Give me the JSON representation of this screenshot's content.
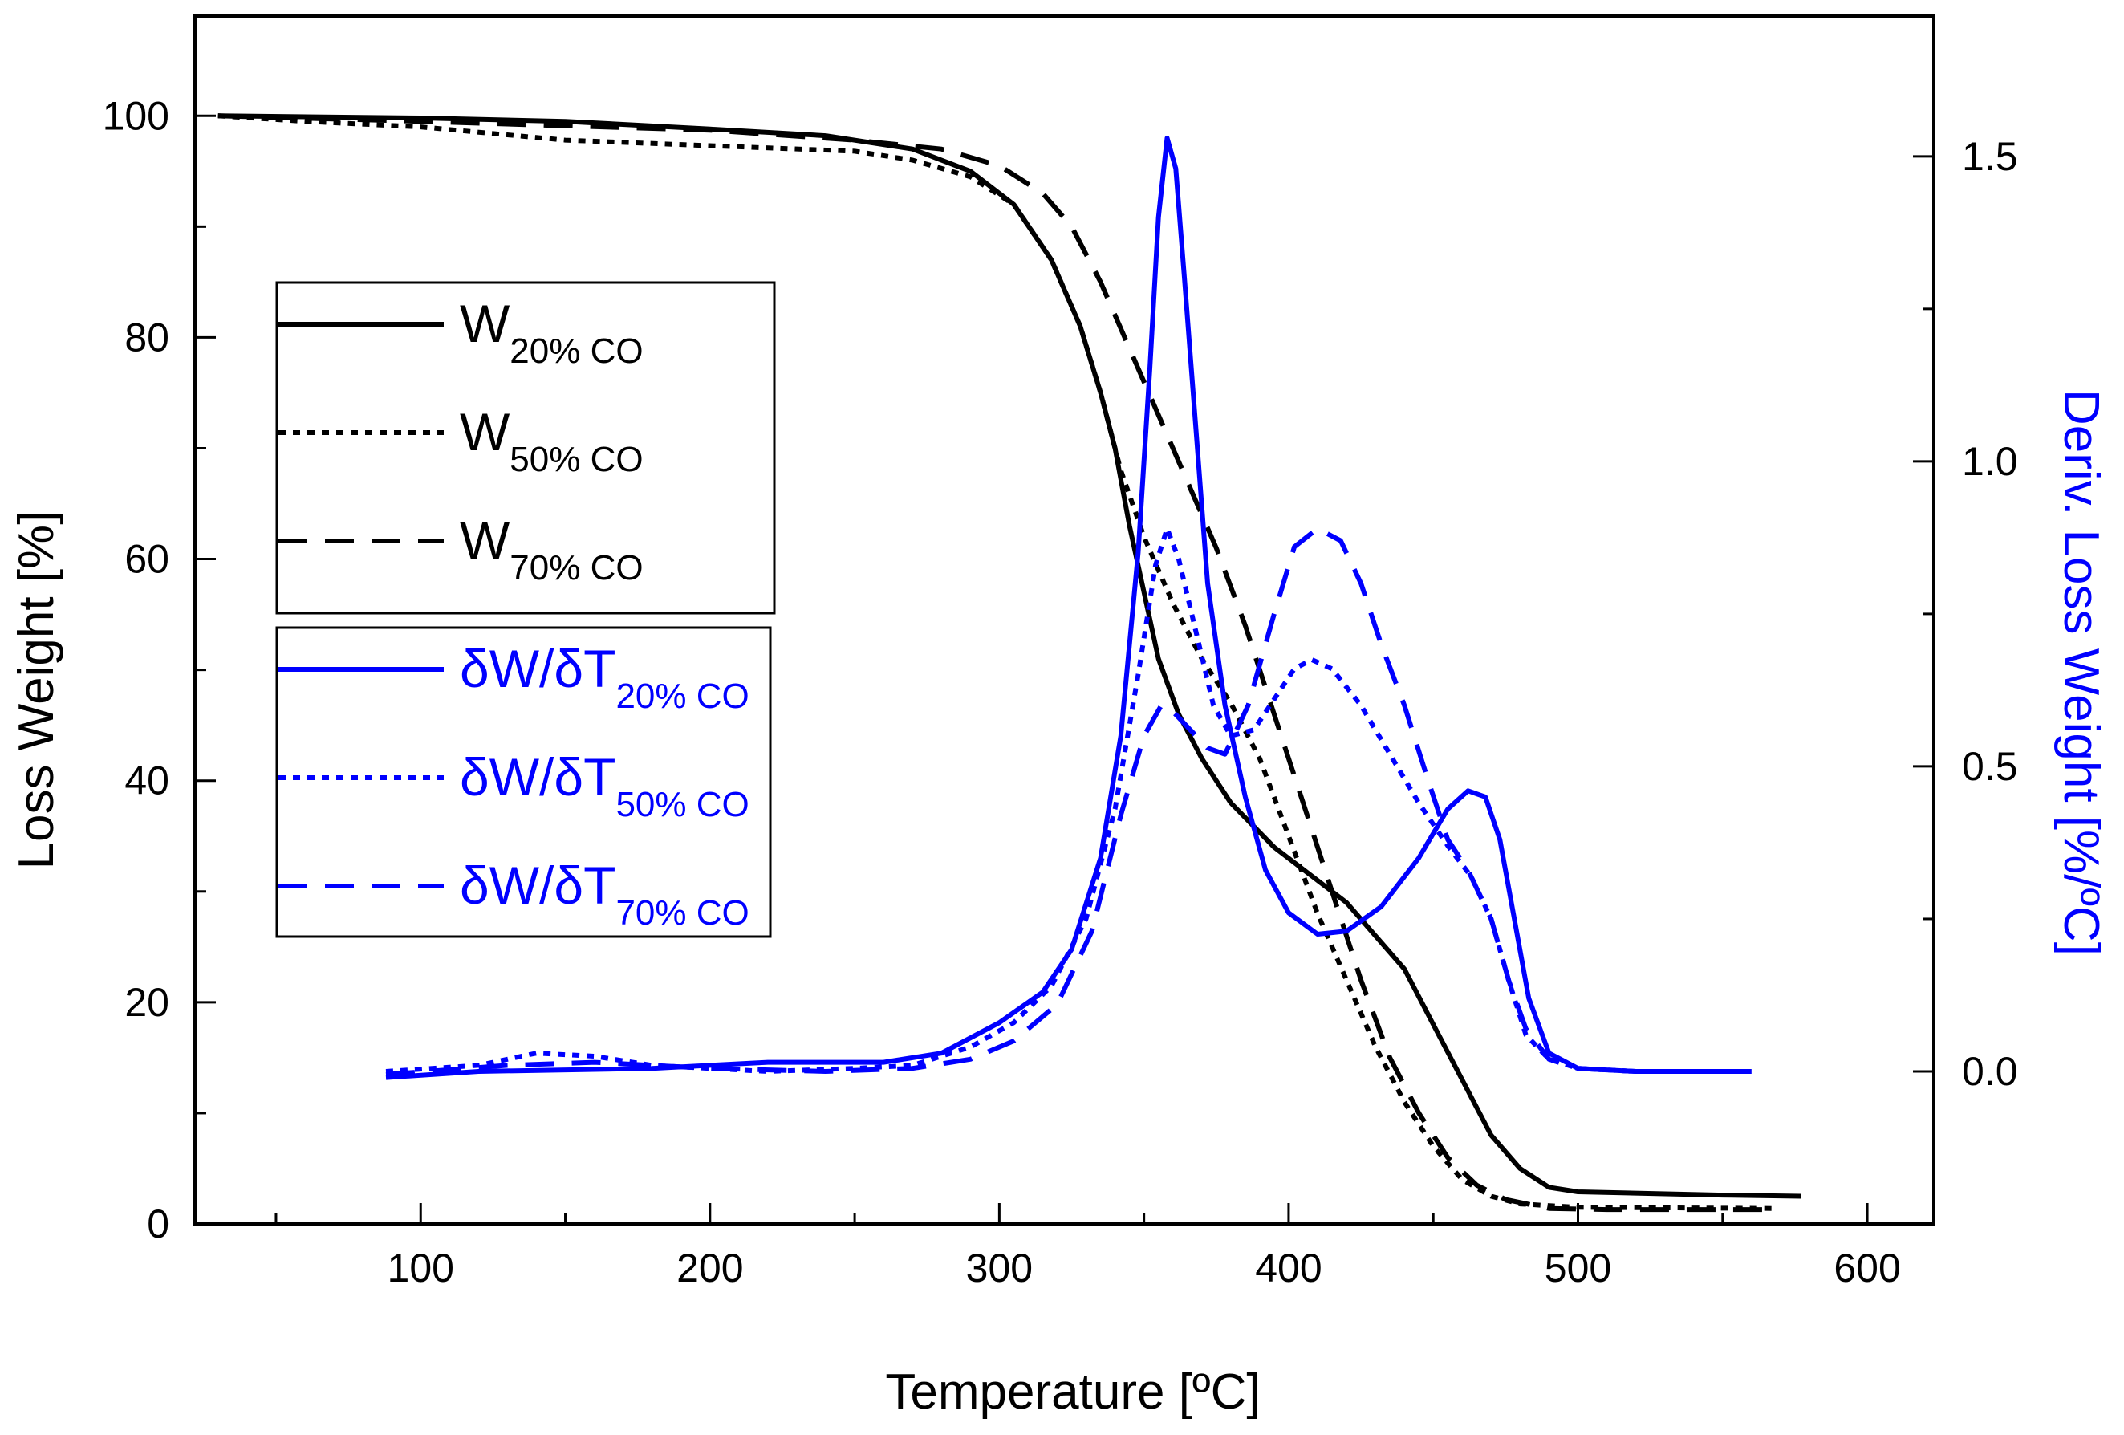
{
  "chart_data": {
    "type": "line",
    "xlabel": "Temperature [ºC]",
    "ylabel": "Loss Weight [%]",
    "y2label": "Deriv. Loss Weight [%/ºC]",
    "xlim": [
      22,
      623
    ],
    "ylim": [
      0,
      109
    ],
    "y2lim": [
      -0.25,
      1.73
    ],
    "xticks": [
      100,
      200,
      300,
      400,
      500,
      600
    ],
    "xtick_labels": [
      "100",
      "200",
      "300",
      "400",
      "500",
      "600"
    ],
    "yticks": [
      0,
      20,
      40,
      60,
      80,
      100
    ],
    "ytick_labels": [
      "0",
      "20",
      "40",
      "60",
      "80",
      "100"
    ],
    "y2ticks": [
      0.0,
      0.5,
      1.0,
      1.5
    ],
    "y2tick_labels": [
      "0.0",
      "0.5",
      "1.0",
      "1.5"
    ],
    "colors": {
      "weight": "#000000",
      "deriv": "#0000ff"
    },
    "series": [
      {
        "name": "W20% CO",
        "label_main": "W",
        "label_sub": "20% CO",
        "axis": "left",
        "color": "#000000",
        "dash": "solid",
        "points": [
          [
            30,
            100
          ],
          [
            100,
            99.8
          ],
          [
            150,
            99.5
          ],
          [
            200,
            98.8
          ],
          [
            240,
            98.2
          ],
          [
            270,
            97
          ],
          [
            290,
            95
          ],
          [
            305,
            92
          ],
          [
            318,
            87
          ],
          [
            328,
            81
          ],
          [
            335,
            75
          ],
          [
            340,
            70
          ],
          [
            345,
            63
          ],
          [
            350,
            57
          ],
          [
            355,
            51
          ],
          [
            362,
            46
          ],
          [
            370,
            42
          ],
          [
            380,
            38
          ],
          [
            395,
            34
          ],
          [
            410,
            31
          ],
          [
            420,
            29
          ],
          [
            430,
            26
          ],
          [
            440,
            23
          ],
          [
            450,
            18
          ],
          [
            460,
            13
          ],
          [
            470,
            8
          ],
          [
            480,
            5
          ],
          [
            490,
            3.3
          ],
          [
            500,
            2.9
          ],
          [
            550,
            2.6
          ],
          [
            577,
            2.5
          ]
        ]
      },
      {
        "name": "W50% CO",
        "label_main": "W",
        "label_sub": "50% CO",
        "axis": "left",
        "color": "#000000",
        "dash": "short",
        "points": [
          [
            30,
            100
          ],
          [
            60,
            99.5
          ],
          [
            100,
            99
          ],
          [
            150,
            97.8
          ],
          [
            200,
            97.3
          ],
          [
            250,
            96.8
          ],
          [
            270,
            96
          ],
          [
            290,
            94.5
          ],
          [
            305,
            92
          ],
          [
            318,
            87
          ],
          [
            328,
            81
          ],
          [
            335,
            75
          ],
          [
            342,
            68
          ],
          [
            350,
            62
          ],
          [
            360,
            56
          ],
          [
            370,
            51
          ],
          [
            380,
            47
          ],
          [
            390,
            42
          ],
          [
            400,
            35
          ],
          [
            410,
            28
          ],
          [
            420,
            22
          ],
          [
            430,
            16
          ],
          [
            440,
            11
          ],
          [
            450,
            7
          ],
          [
            460,
            4
          ],
          [
            470,
            2.5
          ],
          [
            480,
            1.8
          ],
          [
            500,
            1.5
          ],
          [
            567,
            1.4
          ]
        ]
      },
      {
        "name": "W70% CO",
        "label_main": "W",
        "label_sub": "70% CO",
        "axis": "left",
        "color": "#000000",
        "dash": "long",
        "points": [
          [
            30,
            100
          ],
          [
            100,
            99.5
          ],
          [
            200,
            98.7
          ],
          [
            250,
            97.8
          ],
          [
            280,
            97
          ],
          [
            300,
            95.5
          ],
          [
            315,
            93
          ],
          [
            325,
            90
          ],
          [
            335,
            85
          ],
          [
            345,
            79
          ],
          [
            355,
            73
          ],
          [
            365,
            67
          ],
          [
            375,
            61
          ],
          [
            385,
            54
          ],
          [
            395,
            46
          ],
          [
            405,
            38
          ],
          [
            415,
            30
          ],
          [
            425,
            22
          ],
          [
            435,
            15
          ],
          [
            445,
            10
          ],
          [
            455,
            6
          ],
          [
            465,
            3.5
          ],
          [
            475,
            2.2
          ],
          [
            490,
            1.4
          ],
          [
            510,
            1.3
          ],
          [
            567,
            1.3
          ]
        ]
      },
      {
        "name": "δW/δT20% CO",
        "label_main": "δW/δT",
        "label_sub": "20% CO",
        "axis": "right",
        "color": "#0000ff",
        "dash": "solid",
        "points": [
          [
            88,
            -0.01
          ],
          [
            120,
            0.0
          ],
          [
            180,
            0.005
          ],
          [
            220,
            0.015
          ],
          [
            260,
            0.015
          ],
          [
            280,
            0.03
          ],
          [
            300,
            0.08
          ],
          [
            315,
            0.13
          ],
          [
            325,
            0.2
          ],
          [
            335,
            0.35
          ],
          [
            342,
            0.55
          ],
          [
            348,
            0.85
          ],
          [
            352,
            1.15
          ],
          [
            355,
            1.4
          ],
          [
            358,
            1.53
          ],
          [
            361,
            1.48
          ],
          [
            364,
            1.3
          ],
          [
            368,
            1.05
          ],
          [
            372,
            0.8
          ],
          [
            378,
            0.6
          ],
          [
            385,
            0.45
          ],
          [
            392,
            0.33
          ],
          [
            400,
            0.26
          ],
          [
            410,
            0.225
          ],
          [
            420,
            0.23
          ],
          [
            432,
            0.27
          ],
          [
            445,
            0.35
          ],
          [
            455,
            0.43
          ],
          [
            462,
            0.46
          ],
          [
            468,
            0.45
          ],
          [
            473,
            0.38
          ],
          [
            478,
            0.25
          ],
          [
            483,
            0.12
          ],
          [
            490,
            0.03
          ],
          [
            500,
            0.005
          ],
          [
            520,
            0.0
          ],
          [
            560,
            0.0
          ]
        ]
      },
      {
        "name": "δW/δT50% CO",
        "label_main": "δW/δT",
        "label_sub": "50% CO",
        "axis": "right",
        "color": "#0000ff",
        "dash": "short",
        "points": [
          [
            88,
            0.0
          ],
          [
            120,
            0.01
          ],
          [
            140,
            0.03
          ],
          [
            160,
            0.025
          ],
          [
            180,
            0.01
          ],
          [
            220,
            0.0
          ],
          [
            250,
            0.005
          ],
          [
            270,
            0.01
          ],
          [
            290,
            0.04
          ],
          [
            305,
            0.08
          ],
          [
            318,
            0.14
          ],
          [
            330,
            0.25
          ],
          [
            340,
            0.43
          ],
          [
            348,
            0.65
          ],
          [
            354,
            0.83
          ],
          [
            358,
            0.89
          ],
          [
            362,
            0.84
          ],
          [
            368,
            0.72
          ],
          [
            374,
            0.6
          ],
          [
            380,
            0.55
          ],
          [
            388,
            0.56
          ],
          [
            395,
            0.61
          ],
          [
            402,
            0.66
          ],
          [
            408,
            0.675
          ],
          [
            415,
            0.66
          ],
          [
            425,
            0.6
          ],
          [
            435,
            0.52
          ],
          [
            445,
            0.44
          ],
          [
            455,
            0.37
          ],
          [
            463,
            0.32
          ],
          [
            470,
            0.25
          ],
          [
            476,
            0.15
          ],
          [
            482,
            0.06
          ],
          [
            490,
            0.02
          ],
          [
            500,
            0.005
          ],
          [
            520,
            0.0
          ]
        ]
      },
      {
        "name": "δW/δT70% CO",
        "label_main": "δW/δT",
        "label_sub": "70% CO",
        "axis": "right",
        "color": "#0000ff",
        "dash": "long",
        "points": [
          [
            88,
            -0.005
          ],
          [
            130,
            0.01
          ],
          [
            160,
            0.015
          ],
          [
            200,
            0.005
          ],
          [
            240,
            0.0
          ],
          [
            270,
            0.005
          ],
          [
            290,
            0.02
          ],
          [
            305,
            0.05
          ],
          [
            320,
            0.11
          ],
          [
            332,
            0.23
          ],
          [
            342,
            0.42
          ],
          [
            350,
            0.55
          ],
          [
            356,
            0.6
          ],
          [
            360,
            0.59
          ],
          [
            366,
            0.56
          ],
          [
            372,
            0.53
          ],
          [
            378,
            0.52
          ],
          [
            386,
            0.6
          ],
          [
            395,
            0.75
          ],
          [
            402,
            0.86
          ],
          [
            410,
            0.89
          ],
          [
            418,
            0.87
          ],
          [
            425,
            0.8
          ],
          [
            432,
            0.7
          ],
          [
            440,
            0.6
          ],
          [
            448,
            0.48
          ],
          [
            455,
            0.38
          ],
          [
            462,
            0.33
          ],
          [
            470,
            0.25
          ],
          [
            476,
            0.15
          ],
          [
            482,
            0.07
          ],
          [
            490,
            0.02
          ],
          [
            500,
            0.005
          ],
          [
            520,
            0.0
          ]
        ]
      }
    ]
  }
}
